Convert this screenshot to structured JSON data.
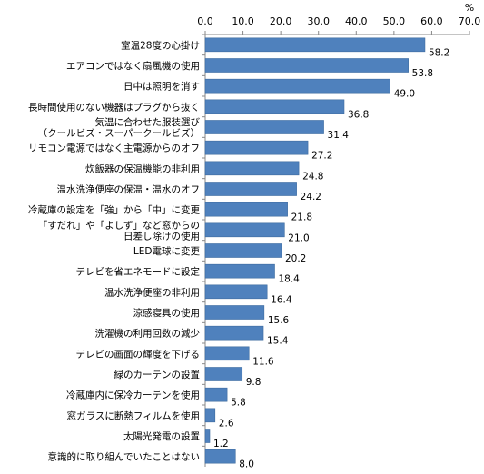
{
  "chart_data": {
    "type": "bar",
    "orientation": "horizontal",
    "unit": "%",
    "xlim": [
      0,
      70
    ],
    "ticks": [
      "0.0",
      "10.0",
      "20.0",
      "30.0",
      "40.0",
      "50.0",
      "60.0",
      "70.0"
    ],
    "grid": false,
    "colors": {
      "bar": "#4F81BD",
      "bar_edge": "#3C6A9E",
      "axis": "#888888"
    },
    "categories": [
      {
        "lines": [
          "室温28度の心掛け"
        ],
        "value": 58.2,
        "label": "58.2"
      },
      {
        "lines": [
          "エアコンではなく扇風機の使用"
        ],
        "value": 53.8,
        "label": "53.8"
      },
      {
        "lines": [
          "日中は照明を消す"
        ],
        "value": 49.0,
        "label": "49.0"
      },
      {
        "lines": [
          "長時間使用のない機器はプラグから抜く"
        ],
        "value": 36.8,
        "label": "36.8"
      },
      {
        "lines": [
          "気温に合わせた服装選び",
          "（クールビズ・スーパークールビズ）"
        ],
        "value": 31.4,
        "label": "31.4"
      },
      {
        "lines": [
          "リモコン電源ではなく主電源からのオフ"
        ],
        "value": 27.2,
        "label": "27.2"
      },
      {
        "lines": [
          "炊飯器の保温機能の非利用"
        ],
        "value": 24.8,
        "label": "24.8"
      },
      {
        "lines": [
          "温水洗浄便座の保温・温水のオフ"
        ],
        "value": 24.2,
        "label": "24.2"
      },
      {
        "lines": [
          "冷蔵庫の設定を「強」から「中」に変更"
        ],
        "value": 21.8,
        "label": "21.8"
      },
      {
        "lines": [
          "「すだれ」や「よしず」など窓からの",
          "日差し除けの使用"
        ],
        "value": 21.0,
        "label": "21.0"
      },
      {
        "lines": [
          "LED電球に変更"
        ],
        "value": 20.2,
        "label": "20.2"
      },
      {
        "lines": [
          "テレビを省エネモードに設定"
        ],
        "value": 18.4,
        "label": "18.4"
      },
      {
        "lines": [
          "温水洗浄便座の非利用"
        ],
        "value": 16.4,
        "label": "16.4"
      },
      {
        "lines": [
          "涼感寝具の使用"
        ],
        "value": 15.6,
        "label": "15.6"
      },
      {
        "lines": [
          "洗濯機の利用回数の減少"
        ],
        "value": 15.4,
        "label": "15.4"
      },
      {
        "lines": [
          "テレビの画面の輝度を下げる"
        ],
        "value": 11.6,
        "label": "11.6"
      },
      {
        "lines": [
          "緑のカーテンの設置"
        ],
        "value": 9.8,
        "label": "9.8"
      },
      {
        "lines": [
          "冷蔵庫内に保冷カーテンを使用"
        ],
        "value": 5.8,
        "label": "5.8"
      },
      {
        "lines": [
          "窓ガラスに断熱フィルムを使用"
        ],
        "value": 2.6,
        "label": "2.6"
      },
      {
        "lines": [
          "太陽光発電の設置"
        ],
        "value": 1.2,
        "label": "1.2"
      },
      {
        "lines": [
          "意識的に取り組んでいたことはない"
        ],
        "value": 8.0,
        "label": "8.0"
      }
    ]
  }
}
